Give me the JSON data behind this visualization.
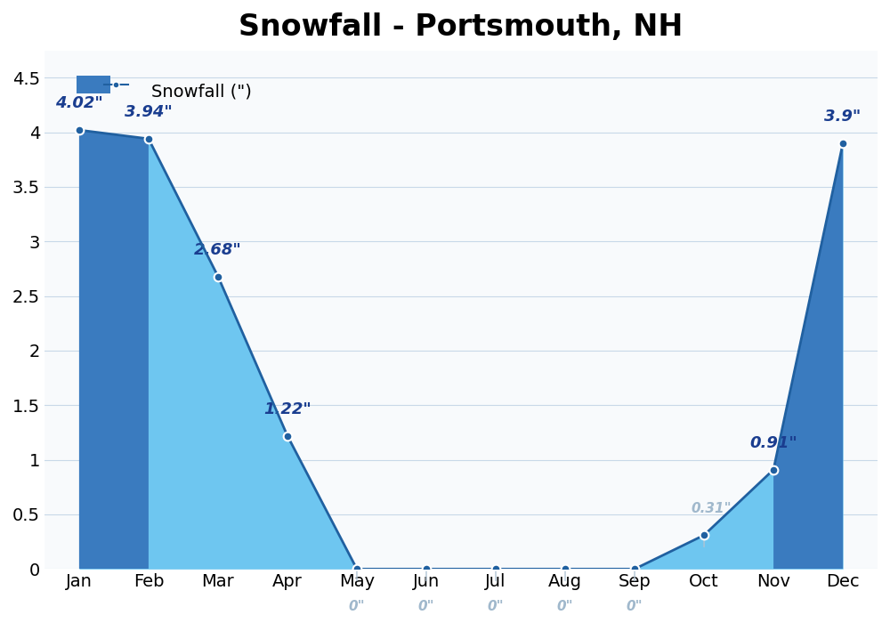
{
  "months": [
    "Jan",
    "Feb",
    "Mar",
    "Apr",
    "May",
    "Jun",
    "Jul",
    "Aug",
    "Sep",
    "Oct",
    "Nov",
    "Dec"
  ],
  "snowfall": [
    4.02,
    3.94,
    2.68,
    1.22,
    0,
    0,
    0,
    0,
    0,
    0.31,
    0.91,
    3.9
  ],
  "labels": [
    "4.02\"",
    "3.94\"",
    "2.68\"",
    "1.22\"",
    "0\"",
    "0\"",
    "0\"",
    "0\"",
    "0\"",
    "0.31\"",
    "0.91\"",
    "3.9\""
  ],
  "title": "Snowfall - Portsmouth, NH",
  "legend_label": "Snowfall (\")",
  "ylim": [
    0,
    4.75
  ],
  "yticks": [
    0.0,
    0.5,
    1.0,
    1.5,
    2.0,
    2.5,
    3.0,
    3.5,
    4.0,
    4.5
  ],
  "fill_color_dark": "#3a7bbf",
  "fill_color_light": "#6ec6f0",
  "line_color": "#2060a0",
  "marker_color": "#2060a0",
  "bg_color": "#ffffff",
  "plot_bg": "#f8fafc",
  "grid_color": "#c8d8e8",
  "label_color_dark": "#1a3d8f",
  "label_color_light": "#a0b8cc",
  "title_fontsize": 24,
  "label_fontsize": 13,
  "tick_fontsize": 14
}
